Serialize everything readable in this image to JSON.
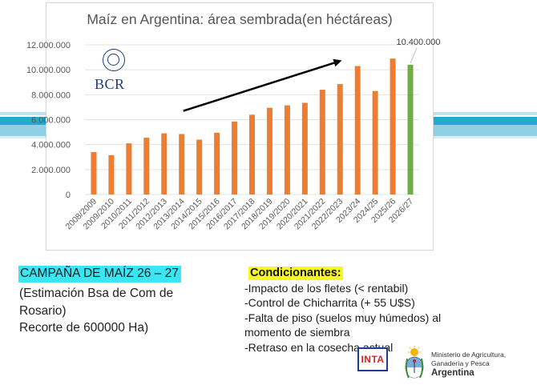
{
  "chart_data": {
    "type": "bar",
    "title": "Maíz en Argentina: área sembrada(en héctáreas)",
    "categories": [
      "2008/2009",
      "2009/2010",
      "2010/2011",
      "2011/2012",
      "2012/2013",
      "2013/2014",
      "2014/2015",
      "2015/2016",
      "2016/2017",
      "2017/2018",
      "2018/2019",
      "2019/2020",
      "2020/2021",
      "2021/2022",
      "2022/2023",
      "2023/24",
      "2024/25",
      "2025/26",
      "2026/27"
    ],
    "values": [
      3400000,
      3150000,
      4100000,
      4550000,
      4900000,
      4850000,
      4400000,
      4950000,
      5850000,
      6400000,
      6950000,
      7150000,
      7350000,
      8400000,
      8850000,
      10300000,
      8300000,
      10900000,
      10400000
    ],
    "highlight_index": 18,
    "highlight_label": "10.400.000",
    "y_ticks": [
      "0",
      "2.000.000",
      "4.000.000",
      "6.000.000",
      "8.000.000",
      "10.000.000",
      "12.000.000"
    ],
    "ylim": [
      0,
      12000000
    ],
    "grid": true,
    "colors": {
      "bar": "#ed7d31",
      "highlight": "#70ad47",
      "arrow": "#000000"
    },
    "annotation": "trend-arrow"
  },
  "logos": {
    "chart_logo": "BCR",
    "inta": "INTA"
  },
  "campaign": {
    "title": "CAMPAÑA DE MAÍZ 26 – 27",
    "estimation_lines": [
      "(Estimación Bsa de Com de Rosario)",
      "Recorte de 600000 Ha)"
    ]
  },
  "conditions": {
    "title": "Condicionantes",
    "colon": ":",
    "items": [
      "-Impacto de los fletes (< rentabil)",
      "-Control de Chicharrita (+ 55 U$S)",
      "-Falta de piso (suelos muy húmedos) al momento de siembra",
      "-Retraso en la cosecha actual"
    ]
  },
  "ministry": {
    "line1": "Ministerio de Agricultura,",
    "line2": "Ganadería y Pesca",
    "country": "Argentina"
  }
}
